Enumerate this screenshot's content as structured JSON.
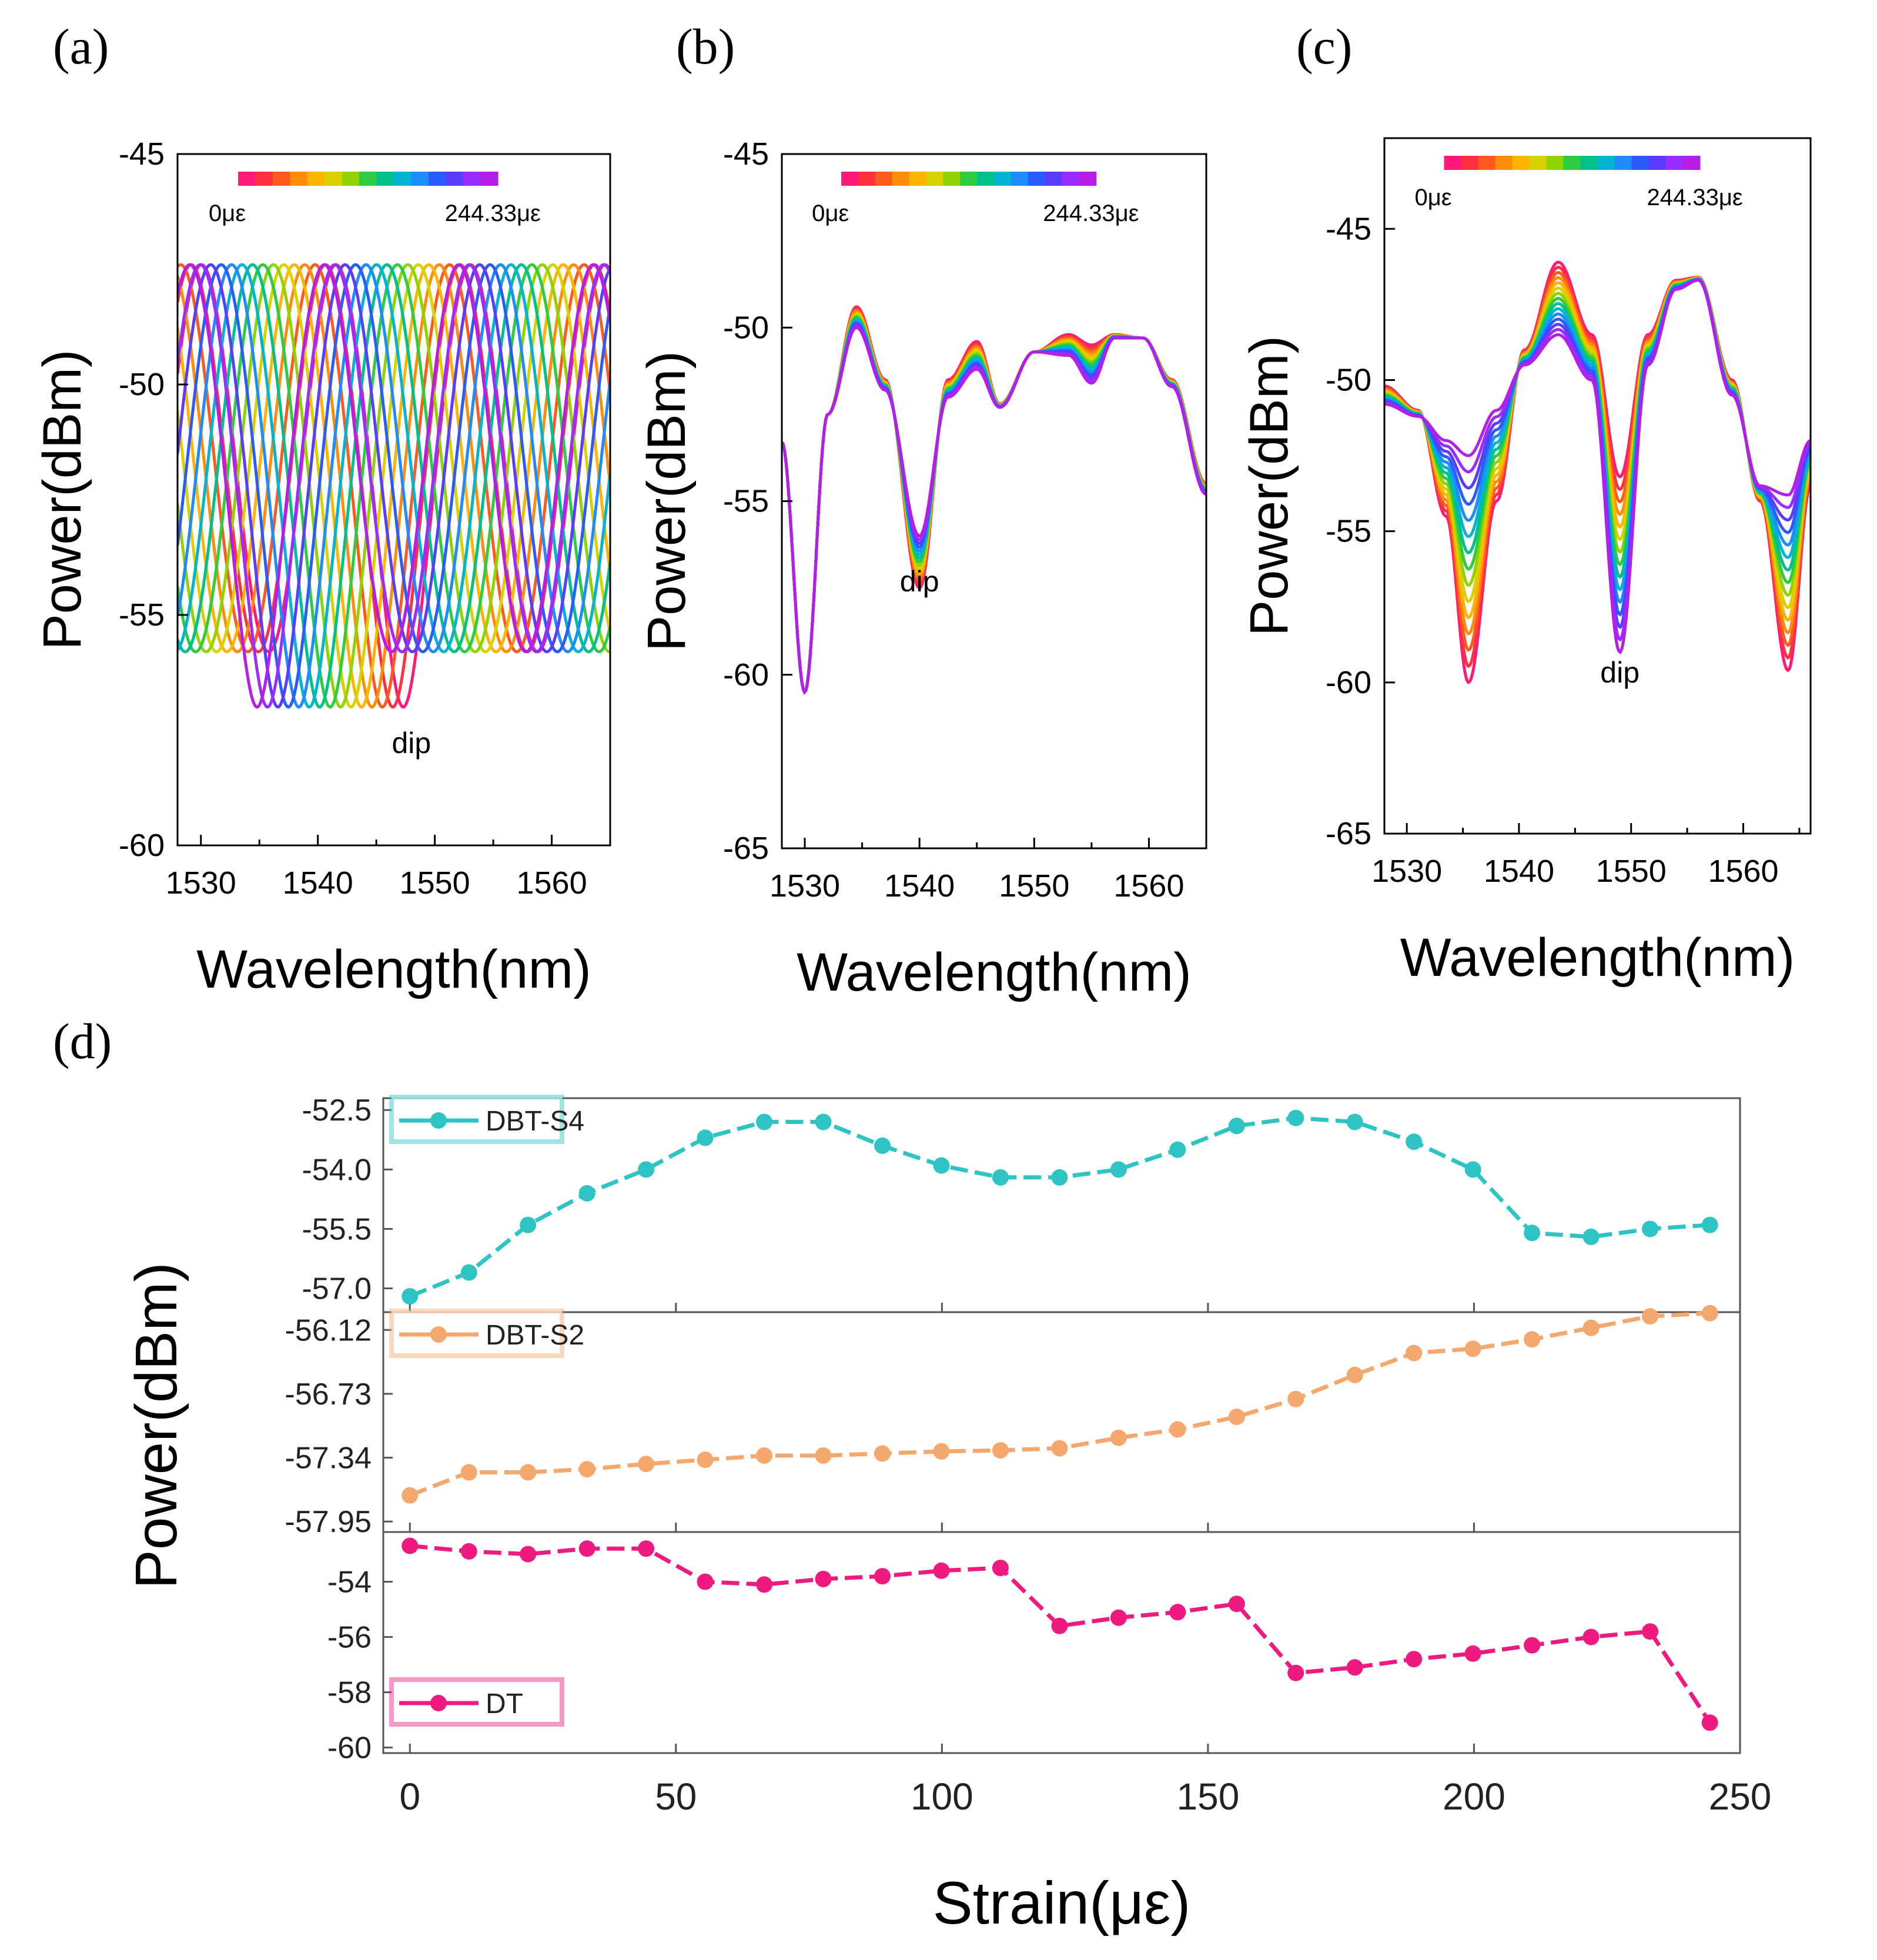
{
  "panel_labels": {
    "a": "(a)",
    "b": "(b)",
    "c": "(c)",
    "d": "(d)"
  },
  "colors": {
    "axis": "#000000",
    "spectrum": [
      "#ff1a7a",
      "#ff3040",
      "#ff5a1e",
      "#ff8c0a",
      "#ffb400",
      "#d9d200",
      "#8fd400",
      "#2ecc40",
      "#00c08c",
      "#00b4d2",
      "#1e8cff",
      "#2a5bff",
      "#5a3cff",
      "#9a2cff",
      "#b41ee6"
    ],
    "dbt_s4": "#2ec4c4",
    "dbt_s2": "#f5a86e",
    "dt": "#ee1a80"
  },
  "chart_data": [
    {
      "id": "a",
      "type": "line",
      "title": "",
      "xlabel": "Wavelength(nm)",
      "ylabel": "Power(dBm)",
      "xlim": [
        1528,
        1565
      ],
      "ylim": [
        -60,
        -45
      ],
      "xticks": [
        1530,
        1540,
        1550,
        1560
      ],
      "yticks": [
        -45,
        -50,
        -55,
        -60
      ],
      "legend": {
        "start": "0με",
        "end": "244.33με",
        "position": "top"
      },
      "annotation": {
        "text": "dip",
        "x": 1548,
        "y": -58
      },
      "series_count": 15,
      "period_nm": 11.5,
      "first_trace_dip_nm": 1547.3,
      "dip_shift_nm": -12.5,
      "last_trace_dip_nm": 1534.8,
      "center_dbm": -51.6,
      "amplitude_dbm": 4.2
    },
    {
      "id": "b",
      "type": "line",
      "title": "",
      "xlabel": "Wavelength(nm)",
      "ylabel": "Power(dBm)",
      "xlim": [
        1528,
        1565
      ],
      "ylim": [
        -65,
        -45
      ],
      "xticks": [
        1530,
        1540,
        1550,
        1560
      ],
      "yticks": [
        -45,
        -50,
        -55,
        -60,
        -65
      ],
      "legend": {
        "start": "0με",
        "end": "244.33με",
        "position": "top"
      },
      "annotation": {
        "text": "dip",
        "x": 1540,
        "y": -57.6
      },
      "series_count": 15,
      "x": [
        1528,
        1530,
        1532,
        1534.5,
        1537,
        1540,
        1542.5,
        1545,
        1547,
        1550,
        1553,
        1555,
        1557,
        1559.5,
        1562,
        1565
      ],
      "first_trace": [
        -53.3,
        -60.5,
        -52.5,
        -49.4,
        -51.5,
        -57.5,
        -51.5,
        -50.4,
        -52.2,
        -50.7,
        -50.2,
        -50.5,
        -50.2,
        -50.3,
        -51.5,
        -54.5
      ],
      "last_trace": [
        -53.3,
        -60.5,
        -52.5,
        -50.0,
        -51.8,
        -56.0,
        -52.0,
        -51.2,
        -52.3,
        -50.7,
        -50.8,
        -51.6,
        -50.3,
        -50.3,
        -51.7,
        -54.8
      ]
    },
    {
      "id": "c",
      "type": "line",
      "title": "",
      "xlabel": "Wavelength(nm)",
      "ylabel": "Power(dBm)",
      "xlim": [
        1528,
        1566
      ],
      "ylim": [
        -65,
        -42
      ],
      "xticks": [
        1530,
        1540,
        1550,
        1560
      ],
      "yticks": [
        -45,
        -50,
        -55,
        -60,
        -65
      ],
      "legend": {
        "start": "0με",
        "end": "244.33με",
        "position": "top"
      },
      "annotation": {
        "text": "dip",
        "x": 1549,
        "y": -60
      },
      "series_count": 15,
      "x": [
        1528,
        1531,
        1533.5,
        1535.5,
        1538,
        1540.5,
        1543.5,
        1546.5,
        1549,
        1551.5,
        1554,
        1556,
        1559,
        1561.5,
        1564,
        1566
      ],
      "first_trace": [
        -50.2,
        -51.0,
        -54.5,
        -60.0,
        -54.0,
        -49.0,
        -46.1,
        -48.5,
        -53.2,
        -48.5,
        -46.7,
        -46.6,
        -50.0,
        -54.0,
        -59.6,
        -53.5
      ],
      "last_trace": [
        -50.8,
        -51.2,
        -52.0,
        -52.5,
        -51.0,
        -49.5,
        -48.5,
        -50.0,
        -59.0,
        -49.5,
        -47.0,
        -46.7,
        -50.5,
        -53.5,
        -53.8,
        -52.0
      ]
    },
    {
      "id": "d",
      "type": "line",
      "title": "",
      "xlabel": "Strain(με)",
      "ylabel": "Power(dBm)",
      "xlim": [
        -5,
        250
      ],
      "xticks": [
        0,
        50,
        100,
        150,
        200,
        250
      ],
      "x": [
        0,
        11.1,
        22.2,
        33.3,
        44.4,
        55.5,
        66.6,
        77.7,
        88.8,
        99.9,
        111,
        122.1,
        133.2,
        144.3,
        155.4,
        166.5,
        177.6,
        188.7,
        199.8,
        210.9,
        222,
        233.1,
        244.33
      ],
      "series": [
        {
          "name": "DBT-S4",
          "legend_position": "top-left",
          "ylim": [
            -57.6,
            -52.2
          ],
          "yticks": [
            -52.5,
            -54.0,
            -55.5,
            -57.0
          ],
          "ytick_labels": [
            "-52.5",
            "-54.0",
            "-55.5",
            "-57.0"
          ],
          "values": [
            -57.2,
            -56.6,
            -55.4,
            -54.6,
            -54.0,
            -53.2,
            -52.8,
            -52.8,
            -53.4,
            -53.9,
            -54.2,
            -54.2,
            -54.0,
            -53.5,
            -52.9,
            -52.7,
            -52.8,
            -53.3,
            -54.0,
            -55.6,
            -55.7,
            -55.5,
            -55.4
          ]
        },
        {
          "name": "DBT-S2",
          "legend_position": "top-left",
          "ylim": [
            -58.05,
            -55.95
          ],
          "yticks": [
            -56.12,
            -56.73,
            -57.34,
            -57.95
          ],
          "ytick_labels": [
            "-56.12",
            "-56.73",
            "-57.34",
            "-57.95"
          ],
          "values": [
            -57.7,
            -57.48,
            -57.48,
            -57.45,
            -57.4,
            -57.36,
            -57.32,
            -57.32,
            -57.3,
            -57.28,
            -57.27,
            -57.25,
            -57.15,
            -57.07,
            -56.95,
            -56.78,
            -56.55,
            -56.34,
            -56.3,
            -56.21,
            -56.1,
            -55.99,
            -55.96
          ]
        },
        {
          "name": "DT",
          "legend_position": "bottom-left",
          "ylim": [
            -60.2,
            -52.2
          ],
          "yticks": [
            -54,
            -56,
            -58,
            -60
          ],
          "ytick_labels": [
            "-54",
            "-56",
            "-58",
            "-60"
          ],
          "values": [
            -52.7,
            -52.9,
            -53.0,
            -52.8,
            -52.8,
            -54.0,
            -54.1,
            -53.9,
            -53.8,
            -53.6,
            -53.5,
            -55.6,
            -55.3,
            -55.1,
            -54.8,
            -57.3,
            -57.1,
            -56.8,
            -56.6,
            -56.3,
            -56.0,
            -55.8,
            -59.1
          ]
        }
      ]
    }
  ]
}
